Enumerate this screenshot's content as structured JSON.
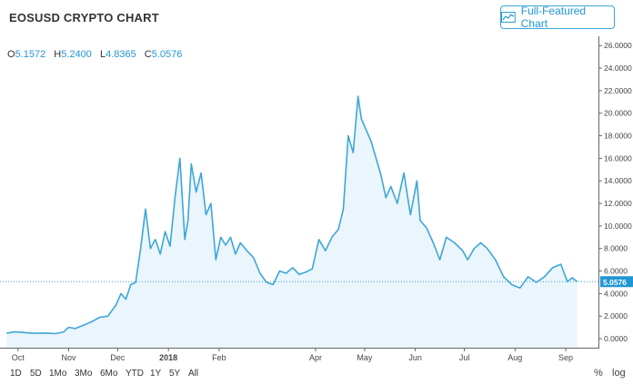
{
  "header": {
    "title": "EOSUSD CRYPTO CHART",
    "full_featured_label": "Full-Featured Chart"
  },
  "ohlc": {
    "open_label": "O",
    "open": "5.1572",
    "high_label": "H",
    "high": "5.2400",
    "low_label": "L",
    "low": "4.8365",
    "close_label": "C",
    "close": "5.0576"
  },
  "toolbar": {
    "ranges": [
      "1D",
      "5D",
      "1Mo",
      "3Mo",
      "6Mo",
      "YTD",
      "1Y",
      "5Y",
      "All"
    ],
    "percent_label": "%",
    "log_label": "log"
  },
  "colors": {
    "line": "#3ea6d8",
    "fill": "#eaf5fc",
    "accent": "#2196d3"
  },
  "chart_data": {
    "type": "area",
    "title": "EOSUSD CRYPTO CHART",
    "xlabel": "",
    "ylabel": "",
    "ylim": [
      -0.8,
      26.5
    ],
    "grid": false,
    "y_ticks": [
      "0.0000",
      "2.0000",
      "4.0000",
      "6.0000",
      "8.0000",
      "10.0000",
      "12.0000",
      "14.0000",
      "16.0000",
      "18.0000",
      "20.0000",
      "22.0000",
      "24.0000",
      "26.0000"
    ],
    "x_ticks": [
      "Oct",
      "Nov",
      "Dec",
      "2018",
      "Feb",
      "Apr",
      "May",
      "Jun",
      "Jul",
      "Aug",
      "Sep"
    ],
    "last_value": 5.0576,
    "last_value_label": "5.0576",
    "series": [
      {
        "x": [
          "2017-09-24",
          "2017-09-29",
          "2017-10-04",
          "2017-10-09",
          "2017-10-14",
          "2017-10-19",
          "2017-10-24",
          "2017-10-29",
          "2017-11-01",
          "2017-11-05",
          "2017-11-10",
          "2017-11-15",
          "2017-11-20",
          "2017-11-25",
          "2017-11-30",
          "2017-12-03",
          "2017-12-06",
          "2017-12-09",
          "2017-12-12",
          "2017-12-15",
          "2017-12-18",
          "2017-12-21",
          "2017-12-24",
          "2017-12-27",
          "2017-12-30",
          "2018-01-02",
          "2018-01-05",
          "2018-01-08",
          "2018-01-11",
          "2018-01-13",
          "2018-01-15",
          "2018-01-18",
          "2018-01-21",
          "2018-01-24",
          "2018-01-27",
          "2018-01-30",
          "2018-02-02",
          "2018-02-05",
          "2018-02-08",
          "2018-02-11",
          "2018-02-14",
          "2018-02-18",
          "2018-02-22",
          "2018-02-26",
          "2018-03-02",
          "2018-03-06",
          "2018-03-10",
          "2018-03-14",
          "2018-03-18",
          "2018-03-22",
          "2018-03-26",
          "2018-03-30",
          "2018-04-03",
          "2018-04-07",
          "2018-04-11",
          "2018-04-15",
          "2018-04-18",
          "2018-04-21",
          "2018-04-24",
          "2018-04-27",
          "2018-04-29",
          "2018-05-02",
          "2018-05-05",
          "2018-05-08",
          "2018-05-11",
          "2018-05-14",
          "2018-05-17",
          "2018-05-21",
          "2018-05-25",
          "2018-05-29",
          "2018-06-02",
          "2018-06-04",
          "2018-06-08",
          "2018-06-12",
          "2018-06-16",
          "2018-06-20",
          "2018-06-25",
          "2018-06-30",
          "2018-07-03",
          "2018-07-07",
          "2018-07-11",
          "2018-07-15",
          "2018-07-20",
          "2018-07-25",
          "2018-07-30",
          "2018-08-04",
          "2018-08-09",
          "2018-08-14",
          "2018-08-19",
          "2018-08-24",
          "2018-08-29",
          "2018-09-02",
          "2018-09-05",
          "2018-09-08"
        ],
        "values": [
          0.5,
          0.6,
          0.55,
          0.5,
          0.48,
          0.5,
          0.45,
          0.6,
          1.0,
          0.9,
          1.2,
          1.5,
          1.9,
          2.0,
          3.0,
          4.0,
          3.5,
          4.8,
          5.0,
          8.0,
          11.5,
          8.0,
          8.8,
          7.5,
          9.5,
          8.2,
          12.5,
          16.0,
          8.8,
          10.5,
          15.5,
          13.0,
          14.7,
          11.0,
          12.0,
          7.0,
          9.0,
          8.3,
          9.0,
          7.5,
          8.5,
          7.8,
          7.2,
          5.8,
          5.0,
          4.8,
          6.0,
          5.8,
          6.3,
          5.7,
          5.9,
          6.2,
          8.8,
          7.8,
          9.0,
          9.7,
          11.5,
          18.0,
          16.5,
          21.5,
          19.5,
          18.5,
          17.5,
          16.0,
          14.5,
          12.5,
          13.5,
          12.0,
          14.7,
          11.0,
          14.0,
          10.5,
          9.8,
          8.5,
          7.0,
          9.0,
          8.5,
          7.8,
          7.0,
          8.0,
          8.5,
          8.0,
          7.0,
          5.5,
          4.8,
          4.5,
          5.5,
          5.0,
          5.5,
          6.3,
          6.6,
          5.06,
          5.4,
          5.0576
        ]
      }
    ]
  }
}
